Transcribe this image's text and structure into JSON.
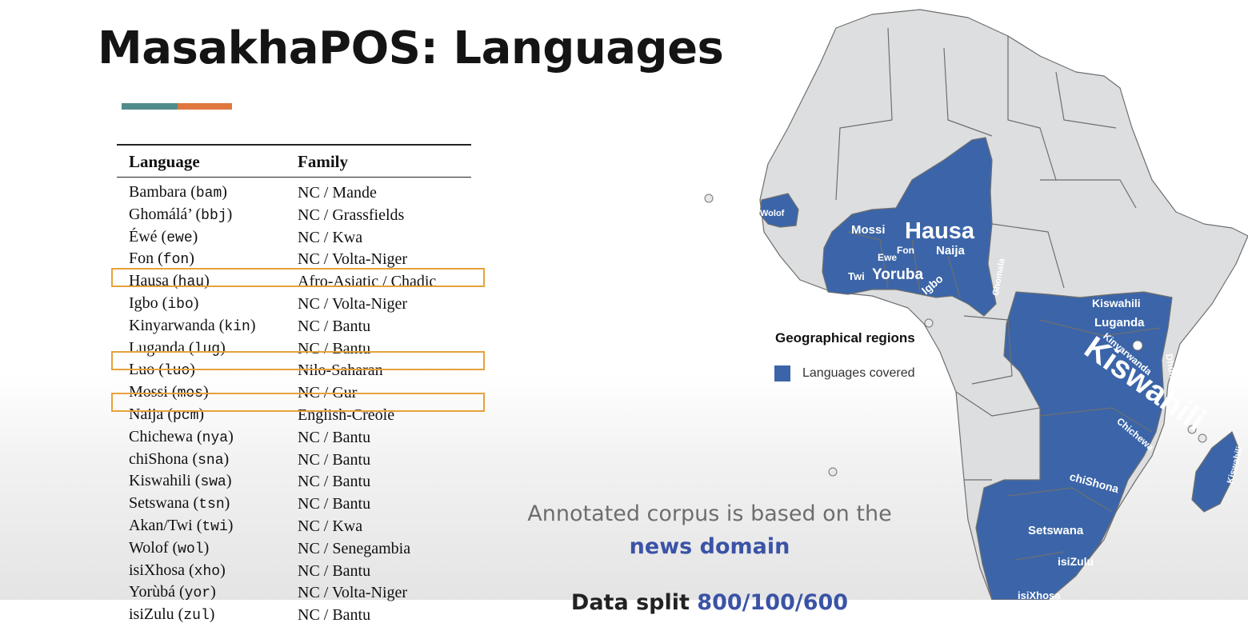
{
  "slide": {
    "title": "MasakhaPOS: Languages"
  },
  "table": {
    "headers": [
      "Language",
      "Family"
    ],
    "rows": [
      {
        "name": "Bambara",
        "code": "bam",
        "family": "NC / Mande",
        "highlight": false
      },
      {
        "name": "Ghomálá’",
        "code": "bbj",
        "family": "NC / Grassfields",
        "highlight": false
      },
      {
        "name": "Éwé",
        "code": "ewe",
        "family": "NC / Kwa",
        "highlight": false
      },
      {
        "name": "Fon",
        "code": "fon",
        "family": "NC / Volta-Niger",
        "highlight": false
      },
      {
        "name": "Hausa",
        "code": "hau",
        "family": "Afro-Asiatic / Chadic",
        "highlight": true
      },
      {
        "name": "Igbo",
        "code": "ibo",
        "family": "NC / Volta-Niger",
        "highlight": false
      },
      {
        "name": "Kinyarwanda",
        "code": "kin",
        "family": "NC / Bantu",
        "highlight": false
      },
      {
        "name": "Luganda",
        "code": "lug",
        "family": "NC / Bantu",
        "highlight": false
      },
      {
        "name": "Luo",
        "code": "luo",
        "family": "Nilo-Saharan",
        "highlight": true
      },
      {
        "name": "Mossi",
        "code": "mos",
        "family": "NC / Gur",
        "highlight": false
      },
      {
        "name": "Naija",
        "code": "pcm",
        "family": "English-Creole",
        "highlight": true
      },
      {
        "name": "Chichewa",
        "code": "nya",
        "family": "NC / Bantu",
        "highlight": false
      },
      {
        "name": "chiShona",
        "code": "sna",
        "family": "NC / Bantu",
        "highlight": false
      },
      {
        "name": "Kiswahili",
        "code": "swa",
        "family": "NC / Bantu",
        "highlight": false
      },
      {
        "name": "Setswana",
        "code": "tsn",
        "family": "NC / Bantu",
        "highlight": false
      },
      {
        "name": "Akan/Twi",
        "code": "twi",
        "family": "NC / Kwa",
        "highlight": false
      },
      {
        "name": "Wolof",
        "code": "wol",
        "family": "NC / Senegambia",
        "highlight": false
      },
      {
        "name": "isiXhosa",
        "code": "xho",
        "family": "NC / Bantu",
        "highlight": false
      },
      {
        "name": "Yorùbá",
        "code": "yor",
        "family": "NC / Volta-Niger",
        "highlight": false
      },
      {
        "name": "isiZulu",
        "code": "zul",
        "family": "NC / Bantu",
        "highlight": false
      }
    ]
  },
  "note": {
    "line1": "Annotated corpus is based on the",
    "line2": "news domain",
    "line3_prefix": "Data split ",
    "line3_value": "800/100/600"
  },
  "map": {
    "legend_title": "Geographical regions",
    "legend_label": "Languages covered",
    "colors": {
      "covered": "#3b65a8",
      "land": "#dcdee0",
      "border": "#6f6f6f"
    },
    "labels": [
      "Wolof",
      "Mossi",
      "Hausa",
      "Fon",
      "Naija",
      "Ewe",
      "Twi",
      "Yoruba",
      "Igbo",
      "Ghomala",
      "Kiswahili",
      "Luganda",
      "Kinyarwanda",
      "Dholuo",
      "Kiswahili",
      "Chichewa",
      "chiShona",
      "Setswana",
      "isiZulu",
      "isiXhosa",
      "Kiswahili"
    ]
  }
}
